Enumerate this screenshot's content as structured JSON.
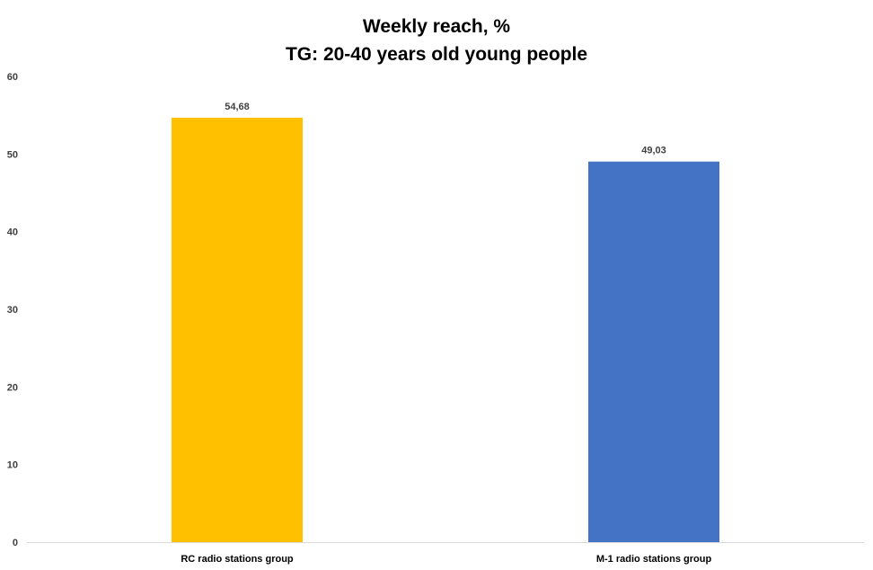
{
  "chart_data": {
    "type": "bar",
    "title_line1": "Weekly reach, %",
    "title_line2": "TG: 20-40 years old young people",
    "categories": [
      "RC radio stations group",
      "M-1 radio stations group"
    ],
    "values": [
      54.68,
      49.03
    ],
    "data_labels": [
      "54,68",
      "49,03"
    ],
    "bar_colors": [
      "#FFC000",
      "#4472C4"
    ],
    "yticks": [
      0,
      10,
      20,
      30,
      40,
      50,
      60
    ],
    "ylim": [
      0,
      60
    ],
    "grid": false,
    "legend": "none",
    "xlabel": "",
    "ylabel": ""
  }
}
